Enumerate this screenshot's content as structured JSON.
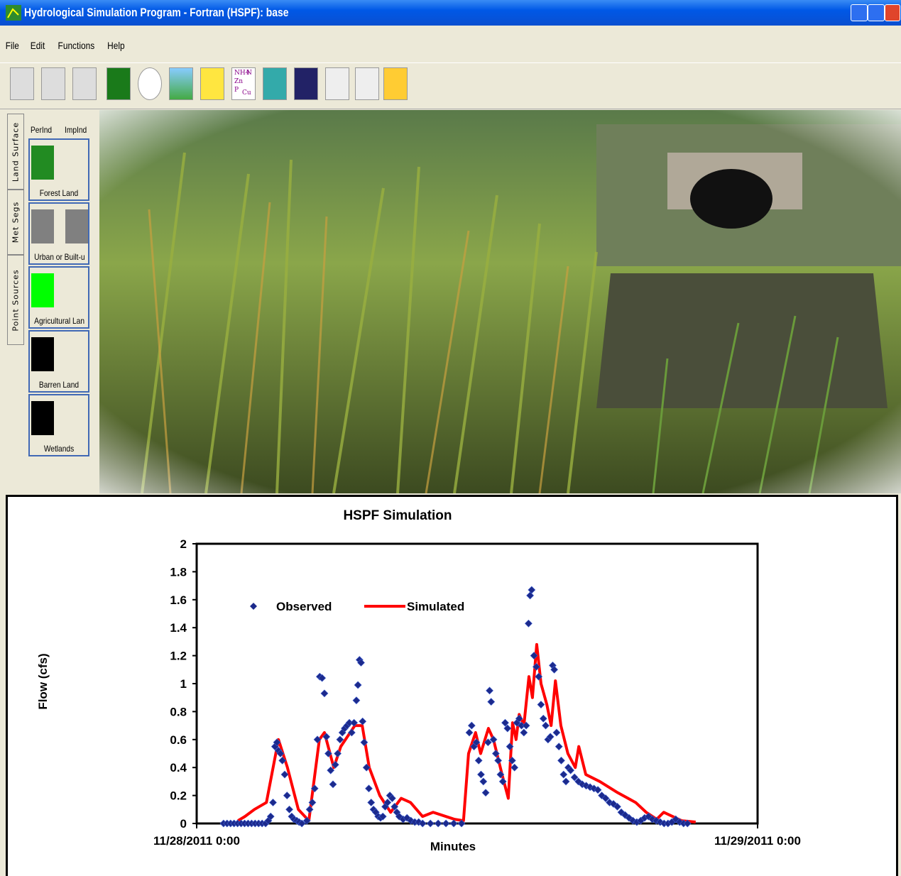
{
  "window": {
    "title": "Hydrological Simulation Program - Fortran (HSPF): base"
  },
  "menu": [
    "File",
    "Edit",
    "Functions",
    "Help"
  ],
  "toolbar_chem_icon": [
    "NH4",
    "N",
    "Zn",
    "P",
    "Cu"
  ],
  "tabs": [
    "Land Surface",
    "Met Segs",
    "Point Sources"
  ],
  "land_headers": [
    "PerInd",
    "ImpInd"
  ],
  "land_uses": [
    {
      "label": "Forest Land",
      "colors": [
        "#228b22"
      ]
    },
    {
      "label": "Urban or Built-u",
      "colors": [
        "#808080",
        "#808080"
      ]
    },
    {
      "label": "Agricultural Lan",
      "colors": [
        "#00ff00"
      ]
    },
    {
      "label": "Barren Land",
      "colors": [
        "#000000"
      ]
    },
    {
      "label": "Wetlands",
      "colors": [
        "#000000"
      ]
    }
  ],
  "chart_data": {
    "type": "line",
    "title": "HSPF Simulation",
    "x_label": "Minutes",
    "y_label": "Flow (cfs)",
    "xlim": [
      0,
      1440
    ],
    "xticks": [
      {
        "value": 0,
        "label": "11/28/2011 0:00"
      },
      {
        "value": 1440,
        "label": "11/29/2011 0:00"
      }
    ],
    "ylim": [
      0,
      2
    ],
    "yticks": [
      0,
      0.2,
      0.4,
      0.6,
      0.8,
      1,
      1.2,
      1.4,
      1.6,
      1.8,
      2
    ],
    "grid": false,
    "legend": "upper left",
    "series": [
      {
        "name": "Observed",
        "type": "scatter",
        "color": "#1c2a8c",
        "x": [
          69,
          78,
          87,
          96,
          105,
          114,
          123,
          132,
          141,
          150,
          159,
          168,
          177,
          184,
          190,
          196,
          201,
          206,
          210,
          215,
          220,
          226,
          232,
          238,
          244,
          250,
          257,
          263,
          270,
          283,
          290,
          297,
          303,
          310,
          316,
          322,
          328,
          333,
          338,
          344,
          350,
          356,
          362,
          368,
          374,
          380,
          386,
          392,
          398,
          404,
          410,
          414,
          418,
          422,
          426,
          430,
          436,
          442,
          448,
          454,
          460,
          466,
          472,
          478,
          484,
          490,
          496,
          502,
          508,
          514,
          520,
          530,
          540,
          550,
          560,
          570,
          580,
          600,
          620,
          640,
          660,
          680,
          700,
          706,
          712,
          718,
          724,
          730,
          736,
          742,
          748,
          752,
          756,
          762,
          768,
          774,
          780,
          786,
          792,
          798,
          804,
          810,
          816,
          822,
          828,
          834,
          840,
          846,
          852,
          856,
          860,
          866,
          872,
          878,
          884,
          890,
          896,
          902,
          908,
          914,
          918,
          924,
          930,
          936,
          942,
          948,
          954,
          960,
          970,
          980,
          990,
          1000,
          1010,
          1020,
          1030,
          1040,
          1050,
          1060,
          1070,
          1080,
          1090,
          1100,
          1110,
          1120,
          1130,
          1140,
          1150,
          1160,
          1170,
          1180,
          1190,
          1200,
          1210,
          1220,
          1230,
          1240,
          1250,
          1260
        ],
        "values": [
          0,
          0,
          0,
          0,
          0,
          0,
          0,
          0,
          0,
          0,
          0,
          0,
          0,
          0.02,
          0.05,
          0.15,
          0.55,
          0.58,
          0.52,
          0.5,
          0.45,
          0.35,
          0.2,
          0.1,
          0.05,
          0.03,
          0.02,
          0.01,
          0,
          0.02,
          0.1,
          0.15,
          0.25,
          0.6,
          1.05,
          1.04,
          0.93,
          0.62,
          0.5,
          0.38,
          0.28,
          0.42,
          0.5,
          0.6,
          0.65,
          0.68,
          0.7,
          0.72,
          0.65,
          0.72,
          0.88,
          0.99,
          1.17,
          1.15,
          0.73,
          0.58,
          0.4,
          0.25,
          0.15,
          0.1,
          0.08,
          0.05,
          0.04,
          0.05,
          0.12,
          0.15,
          0.2,
          0.18,
          0.12,
          0.08,
          0.05,
          0.03,
          0.04,
          0.02,
          0.01,
          0.01,
          0,
          0,
          0,
          0,
          0,
          0,
          0.65,
          0.7,
          0.55,
          0.58,
          0.45,
          0.35,
          0.3,
          0.22,
          0.58,
          0.95,
          0.87,
          0.6,
          0.5,
          0.45,
          0.35,
          0.3,
          0.72,
          0.68,
          0.55,
          0.45,
          0.4,
          0.72,
          0.75,
          0.7,
          0.65,
          0.7,
          1.43,
          1.63,
          1.67,
          1.2,
          1.12,
          1.05,
          0.85,
          0.75,
          0.7,
          0.6,
          0.62,
          1.13,
          1.1,
          0.65,
          0.55,
          0.45,
          0.35,
          0.3,
          0.4,
          0.38,
          0.33,
          0.3,
          0.28,
          0.27,
          0.26,
          0.25,
          0.24,
          0.2,
          0.18,
          0.15,
          0.14,
          0.12,
          0.08,
          0.06,
          0.04,
          0.02,
          0.01,
          0.02,
          0.04,
          0.05,
          0.03,
          0.02,
          0.01,
          0,
          0,
          0.01,
          0.03,
          0.01,
          0,
          0
        ]
      },
      {
        "name": "Simulated",
        "type": "line",
        "color": "#ff0000",
        "x": [
          106,
          124,
          148,
          179,
          210,
          233,
          261,
          288,
          315,
          328,
          352,
          370,
          406,
          425,
          443,
          470,
          498,
          525,
          549,
          580,
          607,
          662,
          685,
          698,
          716,
          729,
          749,
          762,
          784,
          800,
          811,
          820,
          828,
          840,
          853,
          862,
          873,
          884,
          899,
          910,
          921,
          935,
          953,
          972,
          981,
          999,
          1035,
          1081,
          1127,
          1154,
          1181,
          1199,
          1245,
          1281
        ],
        "values": [
          0.02,
          0.05,
          0.1,
          0.15,
          0.6,
          0.4,
          0.1,
          0.02,
          0.6,
          0.65,
          0.4,
          0.55,
          0.7,
          0.7,
          0.4,
          0.2,
          0.08,
          0.18,
          0.15,
          0.05,
          0.08,
          0.03,
          0.02,
          0.5,
          0.65,
          0.5,
          0.68,
          0.6,
          0.35,
          0.18,
          0.72,
          0.6,
          0.78,
          0.7,
          1.05,
          0.9,
          1.28,
          1.0,
          0.85,
          0.7,
          1.02,
          0.7,
          0.5,
          0.4,
          0.55,
          0.35,
          0.3,
          0.22,
          0.15,
          0.08,
          0.03,
          0.08,
          0.02,
          0.01
        ]
      }
    ]
  }
}
